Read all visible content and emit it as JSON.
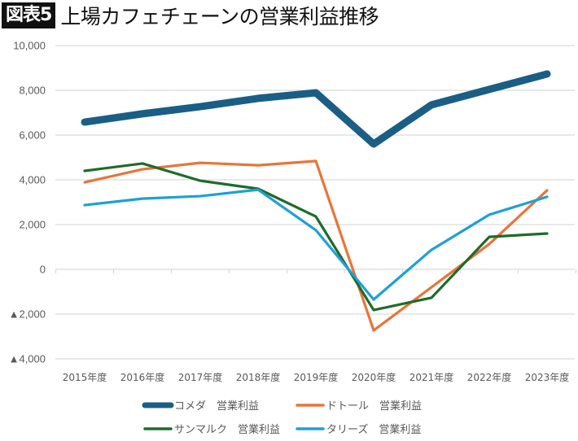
{
  "header": {
    "badge": "図表5",
    "title": "上場カフェチェーンの営業利益推移"
  },
  "chart_data": {
    "type": "line",
    "title": "上場カフェチェーンの営業利益推移",
    "xlabel": "",
    "ylabel": "",
    "ylim": [
      -4000,
      10000
    ],
    "grid": true,
    "legend_position": "bottom",
    "categories": [
      "2015年度",
      "2016年度",
      "2017年度",
      "2018年度",
      "2019年度",
      "2020年度",
      "2021年度",
      "2022年度",
      "2023年度"
    ],
    "y_ticks": [
      {
        "value": 10000,
        "label": "10,000"
      },
      {
        "value": 8000,
        "label": "8,000"
      },
      {
        "value": 6000,
        "label": "6,000"
      },
      {
        "value": 4000,
        "label": "4,000"
      },
      {
        "value": 2000,
        "label": "2,000"
      },
      {
        "value": 0,
        "label": "0"
      },
      {
        "value": -2000,
        "label": "▲2,000"
      },
      {
        "value": -4000,
        "label": "▲4,000"
      }
    ],
    "series": [
      {
        "name": "コメダ　営業利益",
        "color": "#1a5e86",
        "width": 9,
        "values": [
          6580,
          6950,
          7270,
          7640,
          7890,
          5600,
          7350,
          8040,
          8730
        ]
      },
      {
        "name": "ドトール　営業利益",
        "color": "#e8753a",
        "width": 3.2,
        "values": [
          3890,
          4470,
          4760,
          4650,
          4840,
          -2730,
          -800,
          1130,
          3530
        ]
      },
      {
        "name": "サンマルク　営業利益",
        "color": "#1e6b2a",
        "width": 3.2,
        "values": [
          4400,
          4730,
          3960,
          3600,
          2360,
          -1820,
          -1270,
          1450,
          1600
        ]
      },
      {
        "name": "タリーズ　営業利益",
        "color": "#1ea0d6",
        "width": 3.2,
        "values": [
          2870,
          3160,
          3270,
          3560,
          1750,
          -1350,
          870,
          2440,
          3240
        ]
      }
    ]
  }
}
